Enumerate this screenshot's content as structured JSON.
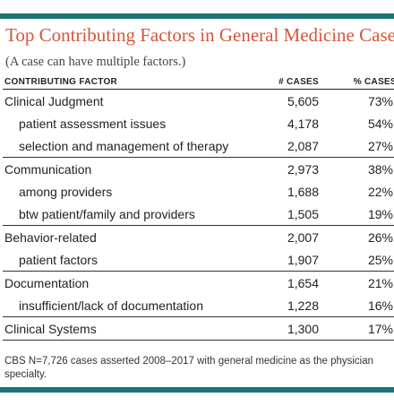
{
  "title": "Top Contributing Factors in General Medicine Cases",
  "subtitle": "(A case can have multiple factors.)",
  "columns": {
    "factor": "CONTRIBUTING FACTOR",
    "cases": "# CASES",
    "pct": "% CASES"
  },
  "rows": [
    {
      "label": "Clinical Judgment",
      "cases": "5,605",
      "pct": "73%",
      "level": "main"
    },
    {
      "label": "patient assessment issues",
      "cases": "4,178",
      "pct": "54%",
      "level": "sub"
    },
    {
      "label": "selection and management of therapy",
      "cases": "2,087",
      "pct": "27%",
      "level": "sub"
    },
    {
      "label": "Communication",
      "cases": "2,973",
      "pct": "38%",
      "level": "main"
    },
    {
      "label": "among providers",
      "cases": "1,688",
      "pct": "22%",
      "level": "sub"
    },
    {
      "label": "btw patient/family and providers",
      "cases": "1,505",
      "pct": "19%",
      "level": "sub"
    },
    {
      "label": "Behavior-related",
      "cases": "2,007",
      "pct": "26%",
      "level": "main"
    },
    {
      "label": "patient factors",
      "cases": "1,907",
      "pct": "25%",
      "level": "sub"
    },
    {
      "label": "Documentation",
      "cases": "1,654",
      "pct": "21%",
      "level": "main"
    },
    {
      "label": "insufficient/lack of documentation",
      "cases": "1,228",
      "pct": "16%",
      "level": "sub"
    },
    {
      "label": "Clinical Systems",
      "cases": "1,300",
      "pct": "17%",
      "level": "main"
    }
  ],
  "footnote": "CBS N=7,726 cases asserted 2008–2017 with general medicine as the physician specialty.",
  "colors": {
    "accent_bar": "#1c7474",
    "title": "#d4563a"
  }
}
